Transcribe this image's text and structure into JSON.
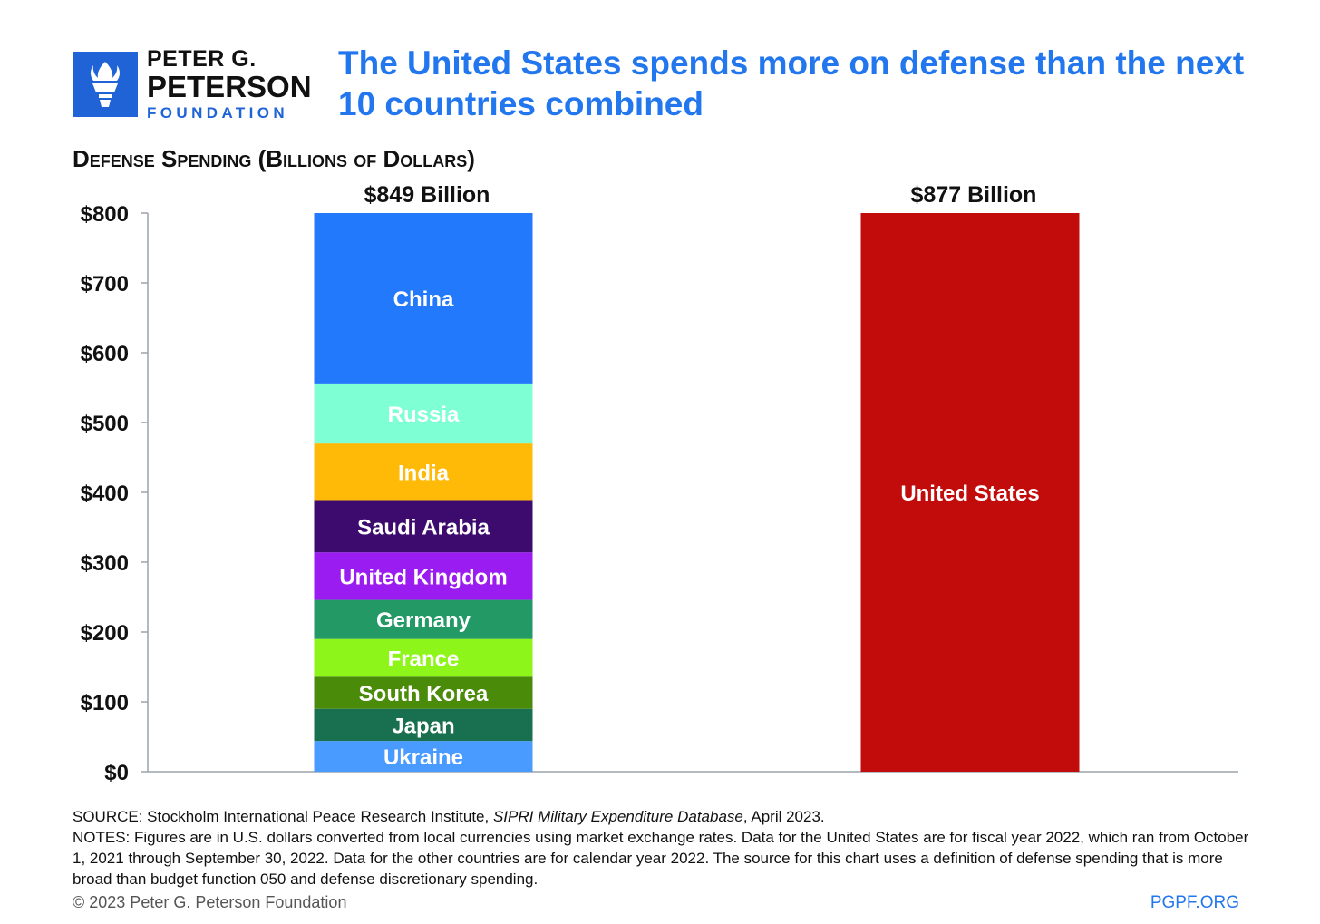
{
  "logo": {
    "line1": "PETER G.",
    "line2": "PETERSON",
    "line3": "FOUNDATION",
    "icon": "torch-icon"
  },
  "title": {
    "line1": "The United States spends more on defense than the next",
    "line2": "10 countries combined"
  },
  "subtitle": "Defense Spending (Billions of Dollars)",
  "colors": {
    "title": "#2277ee",
    "brand": "#1f63d6"
  },
  "chart_data": {
    "type": "bar",
    "stacked": true,
    "ylim": [
      0,
      800
    ],
    "yticks": [
      0,
      100,
      200,
      300,
      400,
      500,
      600,
      700,
      800
    ],
    "ytick_labels": [
      "$0",
      "$100",
      "$200",
      "$300",
      "$400",
      "$500",
      "$600",
      "$700",
      "$800"
    ],
    "ylabel": "",
    "xlabel": "",
    "grid": false,
    "bars": [
      {
        "total_label": "$849 Billion",
        "segments": [
          {
            "name": "Ukraine",
            "value": 44,
            "color": "#4a9bff"
          },
          {
            "name": "Japan",
            "value": 46,
            "color": "#197050"
          },
          {
            "name": "South Korea",
            "value": 46,
            "color": "#4a8c0a"
          },
          {
            "name": "France",
            "value": 54,
            "color": "#8ef51a"
          },
          {
            "name": "Germany",
            "value": 56,
            "color": "#239a66"
          },
          {
            "name": "United Kingdom",
            "value": 68,
            "color": "#9a1cf0"
          },
          {
            "name": "Saudi Arabia",
            "value": 75,
            "color": "#3d0b6d"
          },
          {
            "name": "India",
            "value": 81,
            "color": "#ffba08"
          },
          {
            "name": "Russia",
            "value": 86,
            "color": "#7fffd4"
          },
          {
            "name": "China",
            "value": 292,
            "color": "#2279fb"
          }
        ]
      },
      {
        "total_label": "$877 Billion",
        "segments": [
          {
            "name": "United States",
            "value": 877,
            "color": "#c20b0b"
          }
        ]
      }
    ]
  },
  "footer": {
    "source_prefix": "SOURCE: Stockholm International Peace Research Institute, ",
    "source_italic": "SIPRI Military Expenditure Database",
    "source_suffix": ", April 2023.",
    "notes": "NOTES: Figures are in U.S. dollars converted from local currencies using market exchange rates. Data for the United States are for fiscal year 2022, which ran from October 1, 2021 through September 30, 2022. Data for the other countries are for calendar year 2022. The source for this chart uses a definition of defense spending that is more broad than budget function 050 and defense discretionary spending.",
    "copyright": "© 2023 Peter G. Peterson Foundation",
    "site": "PGPF.ORG"
  }
}
